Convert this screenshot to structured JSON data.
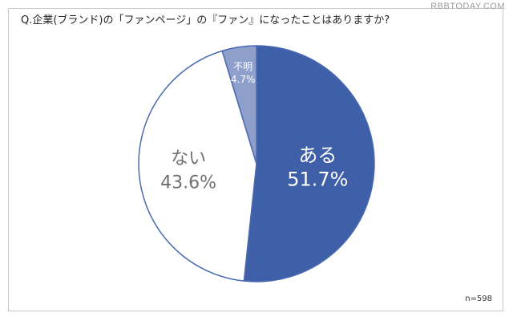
{
  "watermark": "RBBTODAY.COM",
  "question": "Q.企業(ブランド)の「ファンページ」の『ファン』になったことはありますか?",
  "sample_size": "n=598",
  "colors": {
    "yes": "#3f5fa8",
    "no": "#ffffff",
    "unknown": "#8f9fcc",
    "border": "#4a6ab0"
  },
  "chart_data": {
    "type": "pie",
    "title": "Q.企業(ブランド)の「ファンページ」の『ファン』になったことはありますか?",
    "slices": [
      {
        "label": "ある",
        "value": 51.7,
        "value_label": "51.7%",
        "color": "#3f5fa8",
        "text_color": "#ffffff"
      },
      {
        "label": "ない",
        "value": 43.6,
        "value_label": "43.6%",
        "color": "#ffffff",
        "text_color": "#707070"
      },
      {
        "label": "不明",
        "value": 4.7,
        "value_label": "4.7%",
        "color": "#8f9fcc",
        "text_color": "#ffffff"
      }
    ],
    "start_angle": "12 o'clock",
    "direction": "clockwise",
    "legend": "none"
  }
}
